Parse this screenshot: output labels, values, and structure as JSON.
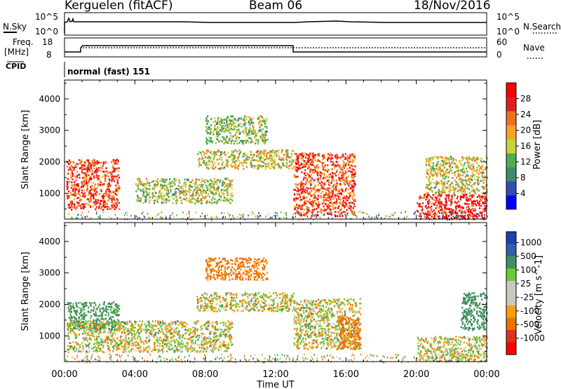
{
  "header": {
    "station": "Kerguelen (fitACF)",
    "beam": "Beam 06",
    "date": "18/Nov/2016"
  },
  "noise_panel": {
    "left_label": "N.Sky",
    "right_label": "N.Search",
    "left_ticks": [
      "10^5",
      "10^0"
    ],
    "right_ticks": [
      "10^5",
      "10^0"
    ]
  },
  "freq_panel": {
    "left_label_1": "Freq.",
    "left_label_2": "[MHz]",
    "right_label": "Nave",
    "left_ticks": [
      "18",
      "8"
    ],
    "right_ticks": [
      "60",
      "0"
    ]
  },
  "cpid": {
    "label": "CPID",
    "value": "normal (fast) 151"
  },
  "colors": {
    "power_scale": [
      "#0000ff",
      "#2f4fb0",
      "#3f8a6a",
      "#4caf50",
      "#c8d23c",
      "#f5a623",
      "#f07020",
      "#e02020",
      "#ff0000"
    ],
    "velocity_scale": [
      "#1f3fb0",
      "#2f5fa8",
      "#3f8f5f",
      "#66cc33",
      "#c8c8c0",
      "#c8c8c0",
      "#f5a000",
      "#f07000",
      "#e03020",
      "#ff0000"
    ]
  },
  "chart_data": [
    {
      "type": "heatmap",
      "title": "Power",
      "xlabel": "",
      "ylabel": "Slant Range [km]",
      "x_ticks": [
        "00:00",
        "04:00",
        "08:00",
        "12:00",
        "16:00",
        "20:00",
        "00:00"
      ],
      "y_ticks": [
        1000,
        2000,
        3000,
        4000
      ],
      "ylim": [
        180,
        4600
      ],
      "colorbar": {
        "label": "Power [dB]",
        "ticks": [
          4,
          8,
          12,
          16,
          20,
          24,
          28
        ],
        "range": [
          0,
          32
        ]
      },
      "regions": [
        {
          "t0": 0.1,
          "t1": 3.1,
          "r0": 500,
          "r1": 2100,
          "dB": 26
        },
        {
          "t0": 4.0,
          "t1": 9.5,
          "r0": 700,
          "r1": 1500,
          "dB": 15
        },
        {
          "t0": 7.5,
          "t1": 13.0,
          "r0": 1800,
          "r1": 2400,
          "dB": 17
        },
        {
          "t0": 8.0,
          "t1": 11.5,
          "r0": 2600,
          "r1": 3500,
          "dB": 14
        },
        {
          "t0": 13.0,
          "t1": 16.5,
          "r0": 300,
          "r1": 2300,
          "dB": 25
        },
        {
          "t0": 20.0,
          "t1": 24.0,
          "r0": 200,
          "r1": 1000,
          "dB": 29
        },
        {
          "t0": 20.5,
          "t1": 24.0,
          "r0": 1000,
          "r1": 2200,
          "dB": 17
        }
      ]
    },
    {
      "type": "heatmap",
      "title": "Velocity",
      "xlabel": "Time UT",
      "ylabel": "Slant Range [km]",
      "x_ticks": [
        "00:00",
        "04:00",
        "08:00",
        "12:00",
        "16:00",
        "20:00",
        "00:00"
      ],
      "y_ticks": [
        1000,
        2000,
        3000,
        4000
      ],
      "ylim": [
        180,
        4600
      ],
      "colorbar": {
        "label": "Velocity [m s^-1]",
        "ticks": [
          1000,
          500,
          100,
          25,
          -25,
          -100,
          -500,
          -1000
        ],
        "range": [
          -1000,
          1000
        ]
      },
      "regions": [
        {
          "t0": 0.1,
          "t1": 3.1,
          "r0": 1200,
          "r1": 2100,
          "v": 200
        },
        {
          "t0": 0.1,
          "t1": 9.5,
          "r0": 500,
          "r1": 1500,
          "v": 0
        },
        {
          "t0": 7.5,
          "t1": 13.0,
          "r0": 1800,
          "r1": 2400,
          "v": 0
        },
        {
          "t0": 8.0,
          "t1": 11.5,
          "r0": 2800,
          "r1": 3500,
          "v": -200
        },
        {
          "t0": 13.0,
          "t1": 16.8,
          "r0": 600,
          "r1": 2200,
          "v": 0
        },
        {
          "t0": 15.5,
          "t1": 16.8,
          "r0": 600,
          "r1": 1600,
          "v": -200
        },
        {
          "t0": 20.0,
          "t1": 24.0,
          "r0": 200,
          "r1": 1000,
          "v": 0
        },
        {
          "t0": 22.5,
          "t1": 24.0,
          "r0": 1200,
          "r1": 2400,
          "v": 300
        }
      ]
    }
  ]
}
